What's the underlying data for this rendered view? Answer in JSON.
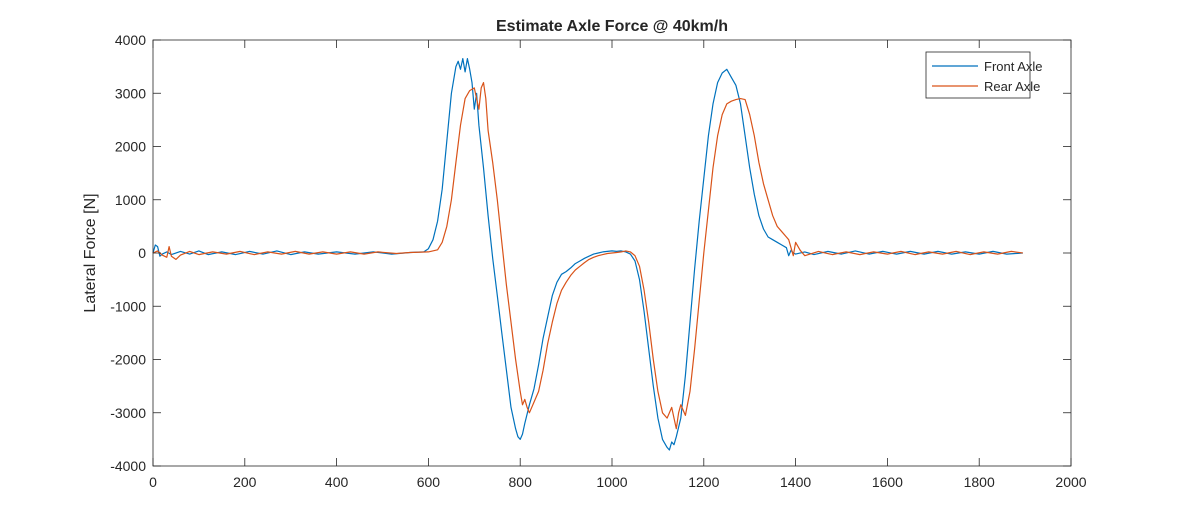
{
  "chart_data": {
    "type": "line",
    "title": "Estimate Axle Force @ 40km/h",
    "xlabel": "",
    "ylabel": "Lateral Force [N]",
    "xlim": [
      0,
      2000
    ],
    "ylim": [
      -4000,
      4000
    ],
    "xticks": [
      0,
      200,
      400,
      600,
      800,
      1000,
      1200,
      1400,
      1600,
      1800,
      2000
    ],
    "yticks": [
      -4000,
      -3000,
      -2000,
      -1000,
      0,
      1000,
      2000,
      3000,
      4000
    ],
    "grid": false,
    "box": true,
    "legend_position": "top-right",
    "series": [
      {
        "name": "Front Axle",
        "color": "#0072BD",
        "points": [
          [
            0,
            0
          ],
          [
            5,
            150
          ],
          [
            10,
            120
          ],
          [
            15,
            -60
          ],
          [
            20,
            -20
          ],
          [
            30,
            20
          ],
          [
            40,
            -30
          ],
          [
            60,
            30
          ],
          [
            80,
            -20
          ],
          [
            100,
            40
          ],
          [
            120,
            -30
          ],
          [
            150,
            20
          ],
          [
            180,
            -30
          ],
          [
            210,
            30
          ],
          [
            240,
            -20
          ],
          [
            270,
            40
          ],
          [
            300,
            -30
          ],
          [
            330,
            20
          ],
          [
            360,
            -20
          ],
          [
            400,
            20
          ],
          [
            440,
            -20
          ],
          [
            480,
            20
          ],
          [
            520,
            -20
          ],
          [
            560,
            10
          ],
          [
            590,
            20
          ],
          [
            600,
            80
          ],
          [
            610,
            250
          ],
          [
            620,
            600
          ],
          [
            630,
            1200
          ],
          [
            640,
            2100
          ],
          [
            650,
            3000
          ],
          [
            660,
            3500
          ],
          [
            665,
            3600
          ],
          [
            670,
            3450
          ],
          [
            675,
            3650
          ],
          [
            680,
            3400
          ],
          [
            685,
            3650
          ],
          [
            690,
            3450
          ],
          [
            695,
            3200
          ],
          [
            700,
            2700
          ],
          [
            705,
            3000
          ],
          [
            710,
            2400
          ],
          [
            720,
            1600
          ],
          [
            730,
            700
          ],
          [
            740,
            -100
          ],
          [
            750,
            -800
          ],
          [
            760,
            -1500
          ],
          [
            770,
            -2200
          ],
          [
            780,
            -2900
          ],
          [
            790,
            -3300
          ],
          [
            795,
            -3450
          ],
          [
            800,
            -3500
          ],
          [
            805,
            -3400
          ],
          [
            810,
            -3200
          ],
          [
            820,
            -2850
          ],
          [
            830,
            -2550
          ],
          [
            840,
            -2100
          ],
          [
            850,
            -1600
          ],
          [
            860,
            -1200
          ],
          [
            870,
            -800
          ],
          [
            880,
            -550
          ],
          [
            890,
            -400
          ],
          [
            900,
            -350
          ],
          [
            910,
            -280
          ],
          [
            920,
            -200
          ],
          [
            930,
            -150
          ],
          [
            940,
            -100
          ],
          [
            950,
            -60
          ],
          [
            960,
            -20
          ],
          [
            970,
            0
          ],
          [
            980,
            20
          ],
          [
            990,
            30
          ],
          [
            1000,
            40
          ],
          [
            1010,
            30
          ],
          [
            1020,
            40
          ],
          [
            1030,
            20
          ],
          [
            1040,
            -20
          ],
          [
            1050,
            -150
          ],
          [
            1060,
            -500
          ],
          [
            1070,
            -1100
          ],
          [
            1080,
            -1800
          ],
          [
            1090,
            -2500
          ],
          [
            1100,
            -3100
          ],
          [
            1110,
            -3500
          ],
          [
            1120,
            -3650
          ],
          [
            1125,
            -3700
          ],
          [
            1130,
            -3550
          ],
          [
            1135,
            -3600
          ],
          [
            1140,
            -3450
          ],
          [
            1150,
            -3100
          ],
          [
            1160,
            -2300
          ],
          [
            1170,
            -1300
          ],
          [
            1180,
            -300
          ],
          [
            1190,
            600
          ],
          [
            1200,
            1400
          ],
          [
            1210,
            2200
          ],
          [
            1220,
            2800
          ],
          [
            1230,
            3200
          ],
          [
            1240,
            3380
          ],
          [
            1250,
            3450
          ],
          [
            1260,
            3300
          ],
          [
            1270,
            3150
          ],
          [
            1280,
            2800
          ],
          [
            1290,
            2200
          ],
          [
            1300,
            1600
          ],
          [
            1310,
            1100
          ],
          [
            1320,
            700
          ],
          [
            1330,
            450
          ],
          [
            1340,
            300
          ],
          [
            1350,
            250
          ],
          [
            1360,
            200
          ],
          [
            1370,
            150
          ],
          [
            1380,
            100
          ],
          [
            1385,
            -50
          ],
          [
            1390,
            50
          ],
          [
            1395,
            0
          ],
          [
            1400,
            -20
          ],
          [
            1420,
            20
          ],
          [
            1440,
            -30
          ],
          [
            1470,
            30
          ],
          [
            1500,
            -20
          ],
          [
            1530,
            40
          ],
          [
            1560,
            -20
          ],
          [
            1590,
            30
          ],
          [
            1620,
            -20
          ],
          [
            1650,
            30
          ],
          [
            1680,
            -20
          ],
          [
            1710,
            30
          ],
          [
            1740,
            -20
          ],
          [
            1770,
            20
          ],
          [
            1800,
            -20
          ],
          [
            1830,
            30
          ],
          [
            1860,
            -20
          ],
          [
            1895,
            0
          ]
        ]
      },
      {
        "name": "Rear Axle",
        "color": "#D95319",
        "points": [
          [
            0,
            0
          ],
          [
            10,
            40
          ],
          [
            20,
            -40
          ],
          [
            30,
            -80
          ],
          [
            35,
            120
          ],
          [
            40,
            -60
          ],
          [
            50,
            -120
          ],
          [
            60,
            -40
          ],
          [
            80,
            30
          ],
          [
            100,
            -30
          ],
          [
            130,
            20
          ],
          [
            160,
            -20
          ],
          [
            190,
            30
          ],
          [
            220,
            -30
          ],
          [
            250,
            20
          ],
          [
            280,
            -20
          ],
          [
            310,
            30
          ],
          [
            340,
            -20
          ],
          [
            370,
            20
          ],
          [
            400,
            -20
          ],
          [
            430,
            20
          ],
          [
            460,
            -20
          ],
          [
            490,
            20
          ],
          [
            530,
            -10
          ],
          [
            560,
            10
          ],
          [
            600,
            20
          ],
          [
            620,
            60
          ],
          [
            630,
            200
          ],
          [
            640,
            500
          ],
          [
            650,
            1000
          ],
          [
            660,
            1700
          ],
          [
            670,
            2400
          ],
          [
            680,
            2900
          ],
          [
            690,
            3050
          ],
          [
            700,
            3100
          ],
          [
            705,
            2900
          ],
          [
            710,
            2700
          ],
          [
            715,
            3100
          ],
          [
            720,
            3200
          ],
          [
            725,
            2900
          ],
          [
            730,
            2300
          ],
          [
            740,
            1700
          ],
          [
            750,
            1000
          ],
          [
            760,
            200
          ],
          [
            770,
            -600
          ],
          [
            780,
            -1300
          ],
          [
            790,
            -2000
          ],
          [
            800,
            -2600
          ],
          [
            805,
            -2850
          ],
          [
            810,
            -2750
          ],
          [
            815,
            -2900
          ],
          [
            820,
            -3000
          ],
          [
            830,
            -2800
          ],
          [
            840,
            -2600
          ],
          [
            850,
            -2200
          ],
          [
            860,
            -1700
          ],
          [
            870,
            -1300
          ],
          [
            880,
            -950
          ],
          [
            890,
            -700
          ],
          [
            900,
            -550
          ],
          [
            910,
            -420
          ],
          [
            920,
            -320
          ],
          [
            930,
            -250
          ],
          [
            940,
            -180
          ],
          [
            950,
            -120
          ],
          [
            960,
            -80
          ],
          [
            970,
            -50
          ],
          [
            980,
            -30
          ],
          [
            990,
            -10
          ],
          [
            1000,
            0
          ],
          [
            1010,
            10
          ],
          [
            1020,
            20
          ],
          [
            1030,
            40
          ],
          [
            1040,
            20
          ],
          [
            1050,
            -50
          ],
          [
            1060,
            -250
          ],
          [
            1070,
            -700
          ],
          [
            1080,
            -1300
          ],
          [
            1090,
            -2000
          ],
          [
            1100,
            -2600
          ],
          [
            1110,
            -3000
          ],
          [
            1120,
            -3100
          ],
          [
            1130,
            -2900
          ],
          [
            1135,
            -3100
          ],
          [
            1140,
            -3300
          ],
          [
            1145,
            -3000
          ],
          [
            1150,
            -2850
          ],
          [
            1160,
            -3050
          ],
          [
            1170,
            -2600
          ],
          [
            1180,
            -1800
          ],
          [
            1190,
            -900
          ],
          [
            1200,
            0
          ],
          [
            1210,
            800
          ],
          [
            1220,
            1600
          ],
          [
            1230,
            2200
          ],
          [
            1240,
            2600
          ],
          [
            1250,
            2800
          ],
          [
            1260,
            2850
          ],
          [
            1270,
            2880
          ],
          [
            1280,
            2900
          ],
          [
            1290,
            2880
          ],
          [
            1300,
            2600
          ],
          [
            1310,
            2200
          ],
          [
            1320,
            1700
          ],
          [
            1330,
            1300
          ],
          [
            1340,
            1000
          ],
          [
            1350,
            700
          ],
          [
            1360,
            500
          ],
          [
            1370,
            400
          ],
          [
            1380,
            300
          ],
          [
            1385,
            250
          ],
          [
            1390,
            100
          ],
          [
            1395,
            -50
          ],
          [
            1400,
            200
          ],
          [
            1410,
            50
          ],
          [
            1420,
            -50
          ],
          [
            1450,
            30
          ],
          [
            1480,
            -30
          ],
          [
            1510,
            20
          ],
          [
            1540,
            -30
          ],
          [
            1570,
            20
          ],
          [
            1600,
            -20
          ],
          [
            1630,
            30
          ],
          [
            1660,
            -30
          ],
          [
            1690,
            20
          ],
          [
            1720,
            -20
          ],
          [
            1750,
            30
          ],
          [
            1780,
            -30
          ],
          [
            1810,
            20
          ],
          [
            1840,
            -20
          ],
          [
            1870,
            30
          ],
          [
            1895,
            0
          ]
        ]
      }
    ]
  }
}
